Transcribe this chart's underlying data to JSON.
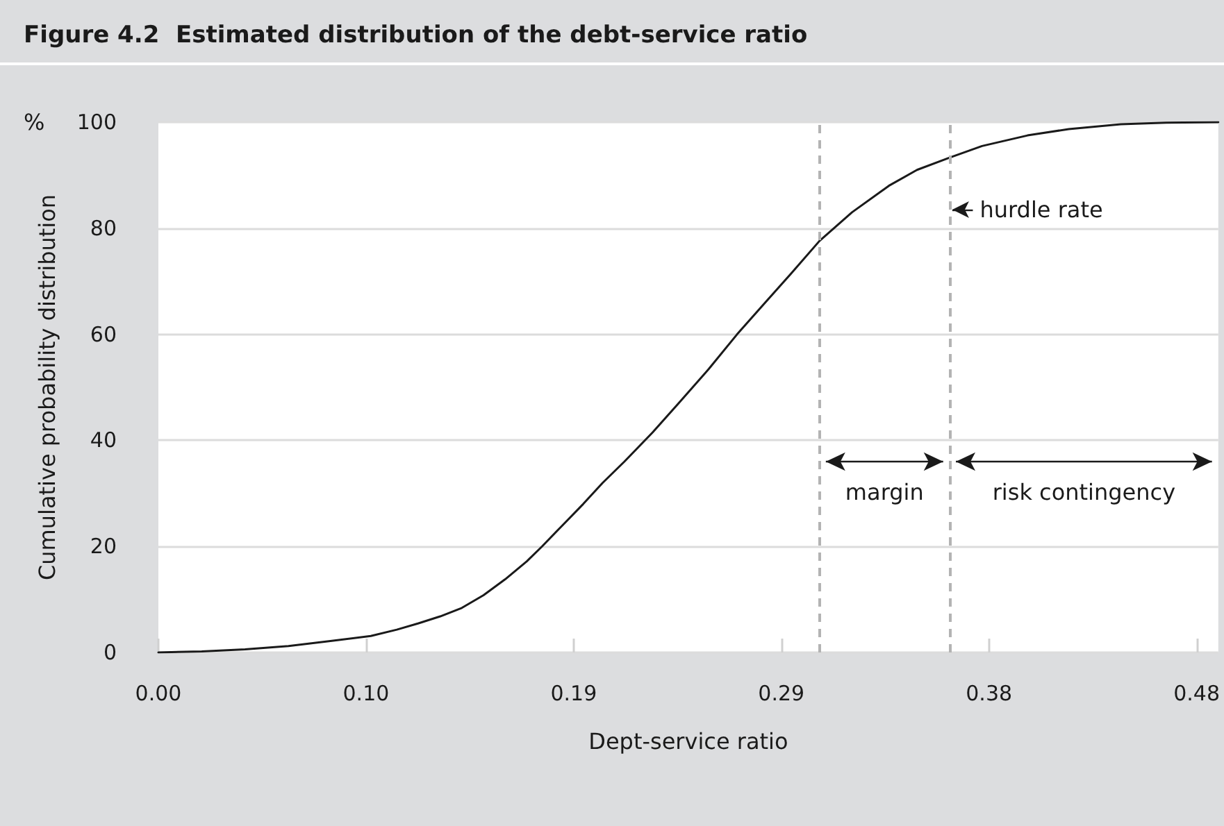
{
  "chart_data": {
    "type": "line",
    "title": "Figure 4.2  Estimated distribution of the debt-service ratio",
    "xlabel": "Dept-service ratio",
    "ylabel": "Cumulative probability distribution",
    "x": [
      0,
      0.02,
      0.04,
      0.06,
      0.08,
      0.098,
      0.11,
      0.12,
      0.13,
      0.14,
      0.15,
      0.16,
      0.17,
      0.177,
      0.186,
      0.196,
      0.205,
      0.215,
      0.228,
      0.24,
      0.254,
      0.267,
      0.28,
      0.292,
      0.305,
      0.32,
      0.337,
      0.35,
      0.365,
      0.38,
      0.401,
      0.42,
      0.444,
      0.465,
      0.489
    ],
    "series": [
      {
        "color": "#1a1a1a",
        "values": [
          0,
          0.2,
          0.6,
          1.2,
          2.2,
          3.1,
          4.3,
          5.5,
          6.8,
          8.4,
          10.8,
          13.8,
          17.2,
          20,
          23.8,
          28,
          32,
          36,
          41.5,
          47,
          53.5,
          60,
          66,
          71.5,
          77.6,
          83,
          88,
          91,
          93.3,
          95.5,
          97.5,
          98.7,
          99.6,
          99.9,
          100
        ]
      }
    ],
    "xlim": [
      0,
      0.489
    ],
    "xticks": [
      {
        "value": 0,
        "label": "0.00"
      },
      {
        "value": 0.0958,
        "label": "0.10"
      },
      {
        "value": 0.1916,
        "label": "0.19"
      },
      {
        "value": 0.2874,
        "label": "0.29"
      },
      {
        "value": 0.3832,
        "label": "0.38"
      },
      {
        "value": 0.479,
        "label": "0.48"
      }
    ],
    "ylim": [
      0,
      100
    ],
    "yticks": [
      0,
      20,
      40,
      60,
      80,
      100
    ],
    "ref_lines": [
      {
        "axis": "x",
        "value": 0.305,
        "label": null,
        "color": "#b3b3b3",
        "line_style": "dashed"
      },
      {
        "axis": "x",
        "value": 0.365,
        "label": "hurdle rate",
        "color": "#b3b3b3",
        "line_style": "dashed"
      }
    ],
    "annotations": [
      "%",
      "margin",
      "risk contingency"
    ],
    "grid": "y",
    "marker": "none",
    "line_style": "solid"
  }
}
